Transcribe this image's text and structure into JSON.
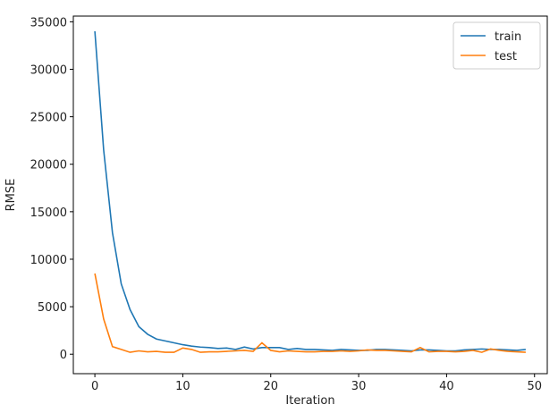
{
  "chart_data": {
    "type": "line",
    "xlabel": "Iteration",
    "ylabel": "RMSE",
    "x": [
      0,
      1,
      2,
      3,
      4,
      5,
      6,
      7,
      8,
      9,
      10,
      11,
      12,
      13,
      14,
      15,
      16,
      17,
      18,
      19,
      20,
      21,
      22,
      23,
      24,
      25,
      26,
      27,
      28,
      29,
      30,
      31,
      32,
      33,
      34,
      35,
      36,
      37,
      38,
      39,
      40,
      41,
      42,
      43,
      44,
      45,
      46,
      47,
      48,
      49
    ],
    "series": [
      {
        "name": "train",
        "color": "#1f77b4",
        "values": [
          34000,
          21500,
          12800,
          7400,
          4700,
          2900,
          2100,
          1600,
          1400,
          1200,
          1000,
          850,
          750,
          700,
          600,
          650,
          500,
          750,
          550,
          700,
          700,
          700,
          500,
          600,
          500,
          500,
          450,
          400,
          500,
          450,
          400,
          400,
          500,
          500,
          450,
          400,
          350,
          450,
          450,
          400,
          350,
          350,
          450,
          500,
          550,
          500,
          500,
          450,
          400,
          500
        ]
      },
      {
        "name": "test",
        "color": "#ff7f0e",
        "values": [
          8500,
          3700,
          800,
          500,
          200,
          350,
          250,
          300,
          200,
          200,
          650,
          500,
          200,
          250,
          250,
          300,
          350,
          400,
          300,
          1200,
          400,
          250,
          350,
          300,
          250,
          250,
          300,
          300,
          350,
          300,
          350,
          450,
          400,
          400,
          350,
          300,
          250,
          700,
          250,
          300,
          300,
          250,
          300,
          400,
          200,
          550,
          400,
          300,
          250,
          200
        ]
      }
    ],
    "xlim": [
      -2.45,
      51.45
    ],
    "xticks": [
      0,
      10,
      20,
      30,
      40,
      50
    ],
    "ylim": [
      -2050,
      35600
    ],
    "yticks": [
      0,
      5000,
      10000,
      15000,
      20000,
      25000,
      30000,
      35000
    ],
    "legend": "upper right"
  }
}
